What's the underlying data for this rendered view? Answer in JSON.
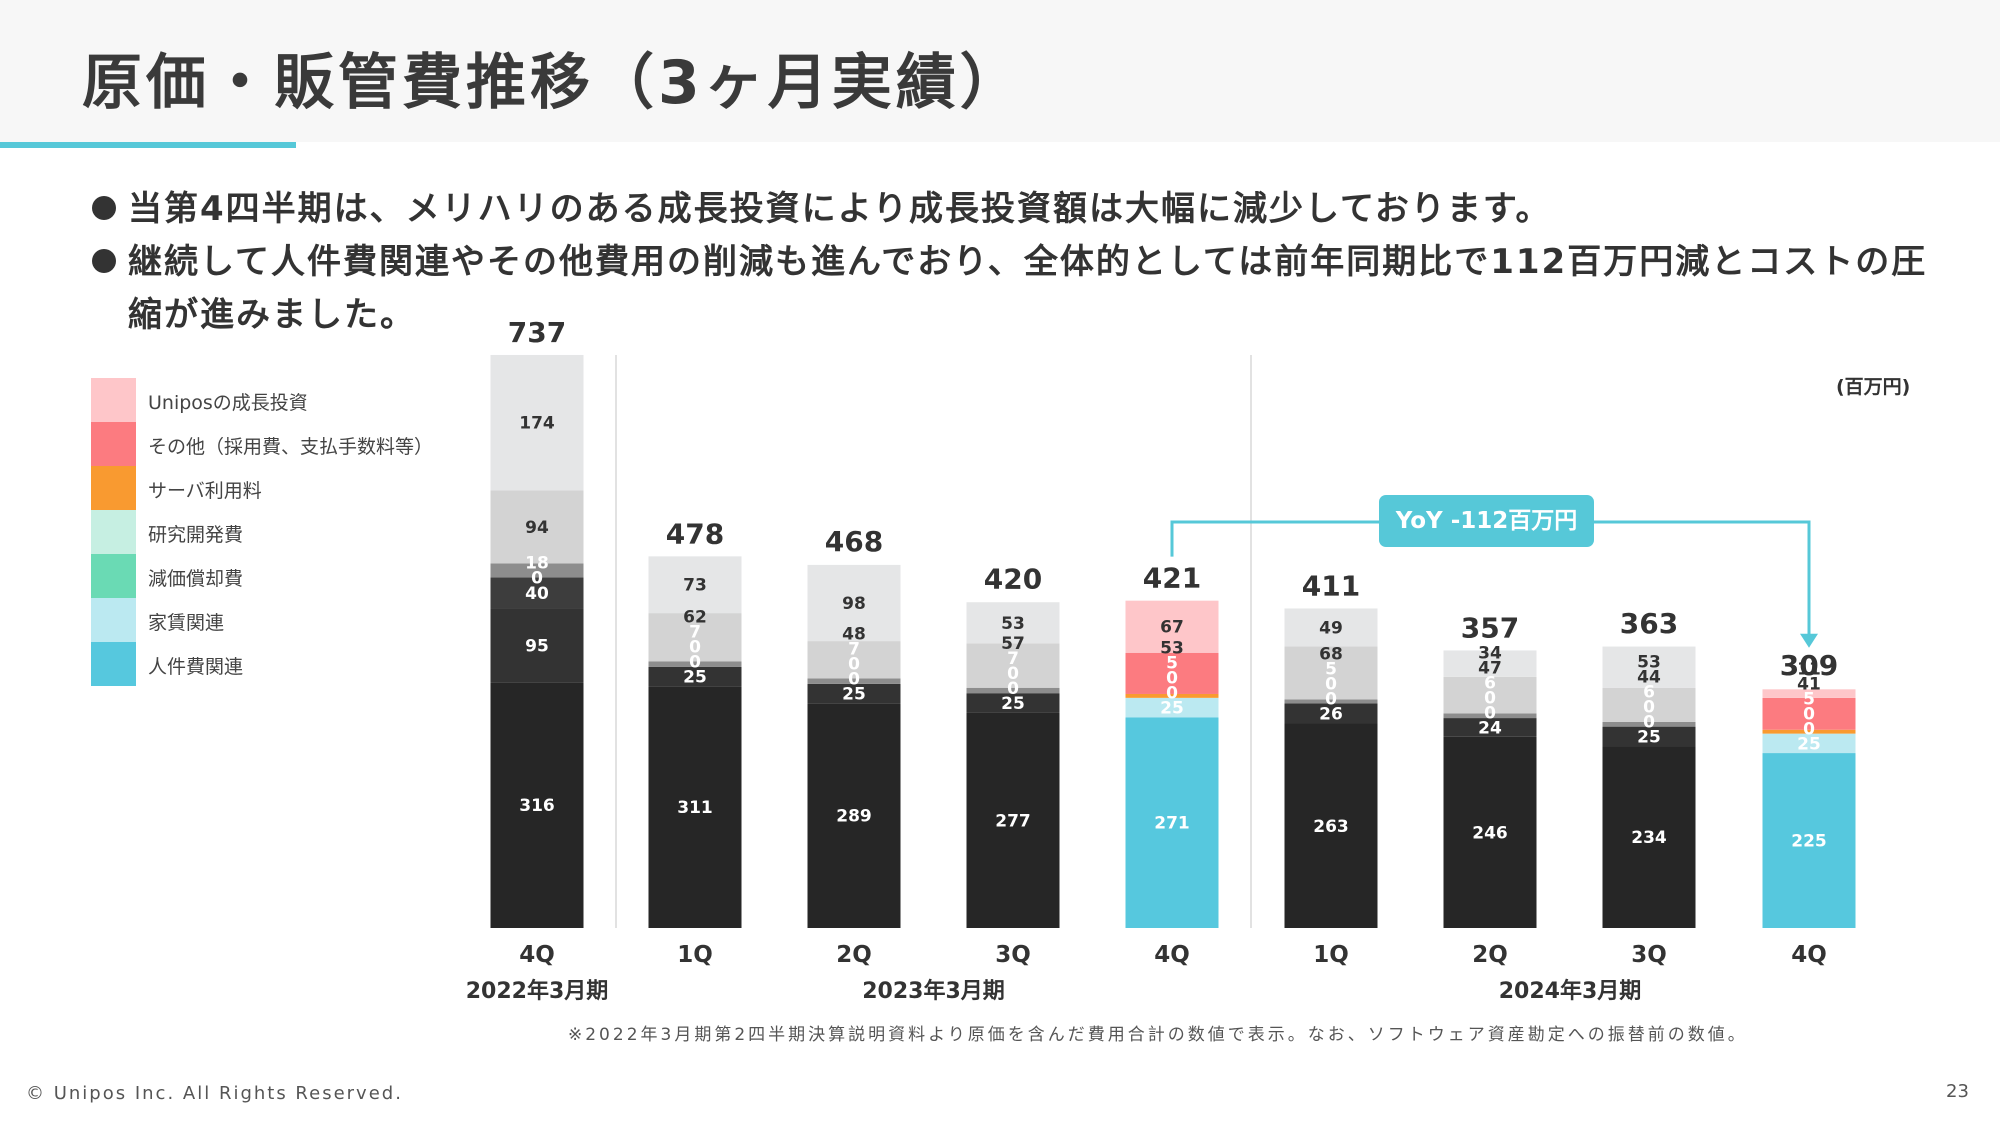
{
  "slide": {
    "title": "原価・販管費推移（3ヶ月実績）",
    "bullets": [
      "当第4四半期は、メリハリのある成長投資により成長投資額は大幅に減少しております。",
      "継続して人件費関連やその他費用の削減も進んでおり、全体的としては前年同期比で112百万円減とコストの圧縮が進みました。"
    ],
    "footnote": "※2022年3月期第2四半期決算説明資料より原価を含んだ費用合計の数値で表示。なお、ソフトウェア資産勘定への振替前の数値。",
    "copyright": "© Unipos Inc. All Rights Reserved.",
    "page_number": "23",
    "colors": {
      "accent": "#56c8d8"
    }
  },
  "chart_data": {
    "type": "bar",
    "stacked": true,
    "unit_label": "(百万円)",
    "categories": [
      "4Q",
      "1Q",
      "2Q",
      "3Q",
      "4Q",
      "1Q",
      "2Q",
      "3Q",
      "4Q"
    ],
    "fiscal_years": [
      {
        "label": "2022年3月期",
        "from": 0,
        "to": 0
      },
      {
        "label": "2023年3月期",
        "from": 1,
        "to": 4
      },
      {
        "label": "2024年3月期",
        "from": 5,
        "to": 8
      }
    ],
    "totals": [
      737,
      478,
      468,
      420,
      421,
      411,
      357,
      363,
      309
    ],
    "highlight_indices": [
      4,
      8
    ],
    "series": [
      {
        "name": "人件費関連",
        "values": [
          316,
          311,
          289,
          277,
          271,
          263,
          246,
          234,
          225
        ]
      },
      {
        "name": "家賃関連",
        "values": [
          95,
          25,
          25,
          25,
          25,
          26,
          24,
          25,
          25
        ]
      },
      {
        "name": "減価償却費",
        "values": [
          40,
          0,
          0,
          0,
          0,
          0,
          0,
          0,
          0
        ]
      },
      {
        "name": "研究開発費",
        "values": [
          0,
          0,
          0,
          0,
          0,
          0,
          0,
          0,
          0
        ]
      },
      {
        "name": "サーバ利用料",
        "values": [
          18,
          7,
          7,
          7,
          5,
          5,
          6,
          6,
          5
        ]
      },
      {
        "name": "その他（採用費、支払手数料等）",
        "values": [
          94,
          62,
          48,
          57,
          53,
          68,
          47,
          44,
          41
        ]
      },
      {
        "name": "Uniposの成長投資",
        "values": [
          174,
          73,
          98,
          53,
          67,
          49,
          34,
          53,
          11
        ]
      }
    ],
    "legend": [
      {
        "name": "Uniposの成長投資",
        "color": "#fec6c9"
      },
      {
        "name": "その他（採用費、支払手数料等）",
        "color": "#fc7b80"
      },
      {
        "name": "サーバ利用料",
        "color": "#f99a30"
      },
      {
        "name": "研究開発費",
        "color": "#c6efe2"
      },
      {
        "name": "減価償却費",
        "color": "#6adab4"
      },
      {
        "name": "家賃関連",
        "color": "#bbe9f1"
      },
      {
        "name": "人件費関連",
        "color": "#56c8de"
      }
    ],
    "annotation": {
      "label": "YoY -112百万円",
      "from_index": 4,
      "to_index": 8
    }
  }
}
